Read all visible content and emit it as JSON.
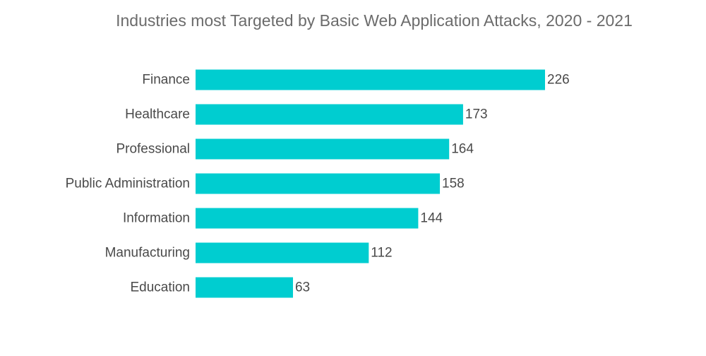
{
  "chart_data": {
    "type": "bar",
    "orientation": "horizontal",
    "title": "Industries most Targeted by Basic Web Application Attacks, 2020 - 2021",
    "categories": [
      "Finance",
      "Healthcare",
      "Professional",
      "Public Administration",
      "Information",
      "Manufacturing",
      "Education"
    ],
    "values": [
      226,
      173,
      164,
      158,
      144,
      112,
      63
    ],
    "data_labels": [
      "226",
      "173",
      "164",
      "158",
      "144",
      "112",
      "63"
    ],
    "xlabel": "",
    "ylabel": "",
    "xlim": [
      0,
      226
    ],
    "grid": false,
    "legend": "none",
    "bar_color": "#00CDD0",
    "text_color": "#4a4a4a",
    "title_color": "#6b6b6b"
  }
}
